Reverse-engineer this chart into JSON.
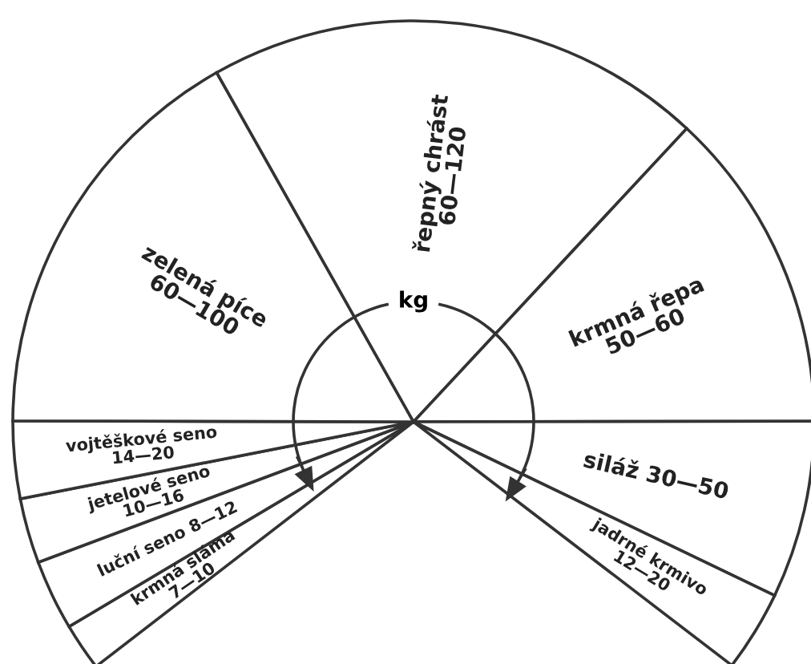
{
  "chart_data": {
    "type": "pie",
    "categories": [
      "krmná sláma 7—10",
      "luční seno 8—12",
      "jetelové seno 10—16",
      "vojtěškové seno 14—20",
      "zelená píce 60—100",
      "řepný chrást 60—120",
      "krmná řepa 50—60",
      "siláž 30—50",
      "jadrné krmivo 12—20"
    ],
    "values": [
      2.7,
      4.0,
      3.7,
      4.4,
      23.7,
      28.4,
      18.4,
      10.1,
      4.6
    ],
    "colors": [
      "#ffffff",
      "#ffffff",
      "#ffffff",
      "#ffffff",
      "#ffffff",
      "#ffffff",
      "#ffffff",
      "#ffffff",
      "#ffffff"
    ],
    "annotations": [
      "kg"
    ]
  }
}
